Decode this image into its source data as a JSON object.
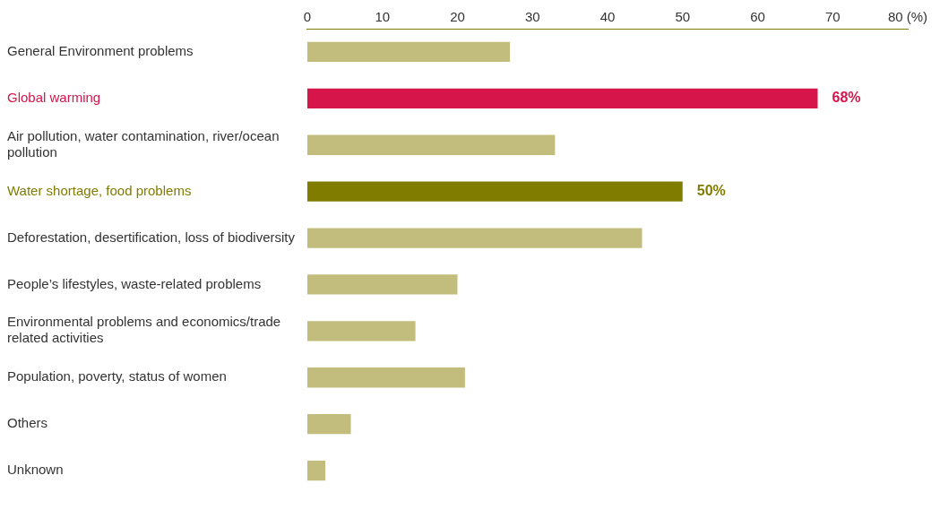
{
  "chart_data": {
    "type": "bar",
    "orientation": "horizontal",
    "categories": [
      "General Environment problems",
      "Global warming",
      "Air pollution, water contamination, river/ocean pollution",
      "Water shortage, food problems",
      "Deforestation, desertification, loss of biodiversity",
      "People’s lifestyles, waste-related problems",
      "Environmental problems and economics/trade related activities",
      "Population, poverty, status of women",
      "Others",
      "Unknown"
    ],
    "values": [
      27,
      68,
      33,
      50,
      44.6,
      20,
      14.4,
      21,
      5.8,
      2.4
    ],
    "color": "#c2bd7c",
    "colors": [
      "#c2bd7c",
      "#d6154a",
      "#c2bd7c",
      "#807c00",
      "#c2bd7c",
      "#c2bd7c",
      "#c2bd7c",
      "#c2bd7c",
      "#c2bd7c",
      "#c2bd7c"
    ],
    "value_labels": [
      null,
      "68%",
      null,
      "50%",
      null,
      null,
      null,
      null,
      null,
      null
    ],
    "xlim": [
      0,
      80
    ],
    "xticks": [
      0,
      10,
      20,
      30,
      40,
      50,
      60,
      70,
      {
        "value": 80,
        "label": "80 (%)"
      }
    ],
    "grid": false,
    "legend": false
  }
}
